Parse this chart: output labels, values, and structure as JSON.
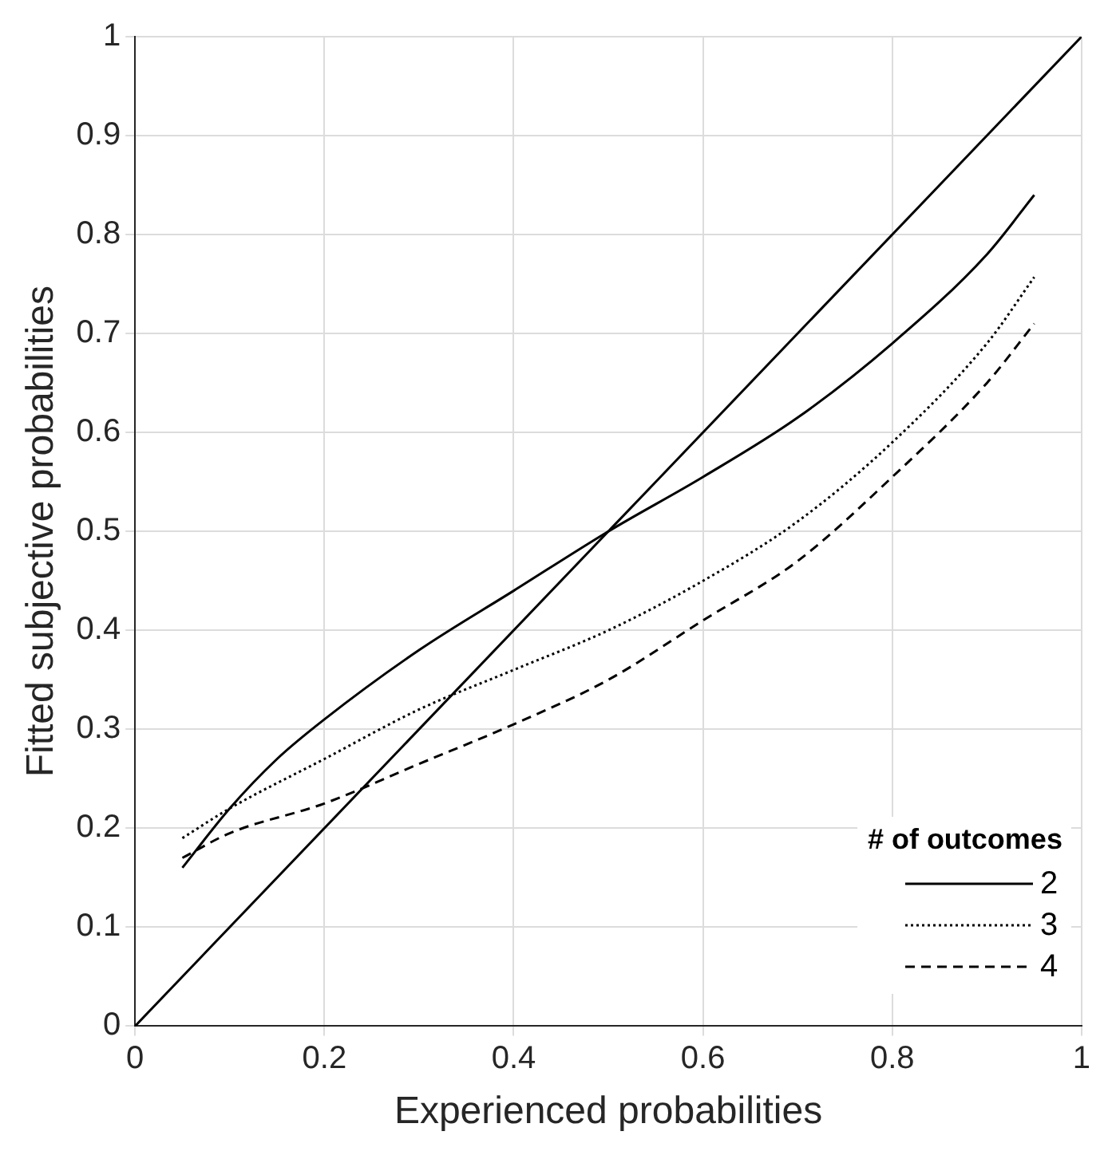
{
  "chart_data": {
    "type": "line",
    "xlabel": "Experienced probabilities",
    "ylabel": "Fitted subjective probabilities",
    "legend_title": "# of outcomes",
    "xlim": [
      0,
      1
    ],
    "ylim": [
      0,
      1
    ],
    "xticks": [
      0,
      0.2,
      0.4,
      0.6,
      0.8,
      1
    ],
    "yticks": [
      0,
      0.1,
      0.2,
      0.3,
      0.4,
      0.5,
      0.6,
      0.7,
      0.8,
      0.9,
      1
    ],
    "grid": true,
    "legend": "bottom right",
    "marker": "none",
    "series": [
      {
        "x": [
          0,
          1
        ],
        "values": [
          0,
          1
        ],
        "color": "#000000",
        "line_style": "solid"
      },
      {
        "name": "2",
        "x": [
          0.05,
          0.1,
          0.15,
          0.2,
          0.3,
          0.4,
          0.5,
          0.6,
          0.7,
          0.8,
          0.9,
          0.95
        ],
        "values": [
          0.16,
          0.22,
          0.27,
          0.31,
          0.38,
          0.44,
          0.5,
          0.555,
          0.615,
          0.69,
          0.78,
          0.84
        ],
        "color": "#000000",
        "line_style": "solid"
      },
      {
        "name": "3",
        "x": [
          0.05,
          0.1,
          0.2,
          0.3,
          0.4,
          0.5,
          0.6,
          0.7,
          0.8,
          0.9,
          0.95
        ],
        "values": [
          0.19,
          0.22,
          0.27,
          0.32,
          0.36,
          0.4,
          0.45,
          0.51,
          0.59,
          0.69,
          0.757
        ],
        "color": "#000000",
        "line_style": "dotted"
      },
      {
        "name": "4",
        "x": [
          0.05,
          0.1,
          0.2,
          0.3,
          0.4,
          0.5,
          0.6,
          0.7,
          0.8,
          0.9,
          0.95
        ],
        "values": [
          0.17,
          0.195,
          0.225,
          0.265,
          0.305,
          0.35,
          0.41,
          0.47,
          0.555,
          0.65,
          0.71
        ],
        "color": "#000000",
        "line_style": "dashed"
      }
    ]
  }
}
